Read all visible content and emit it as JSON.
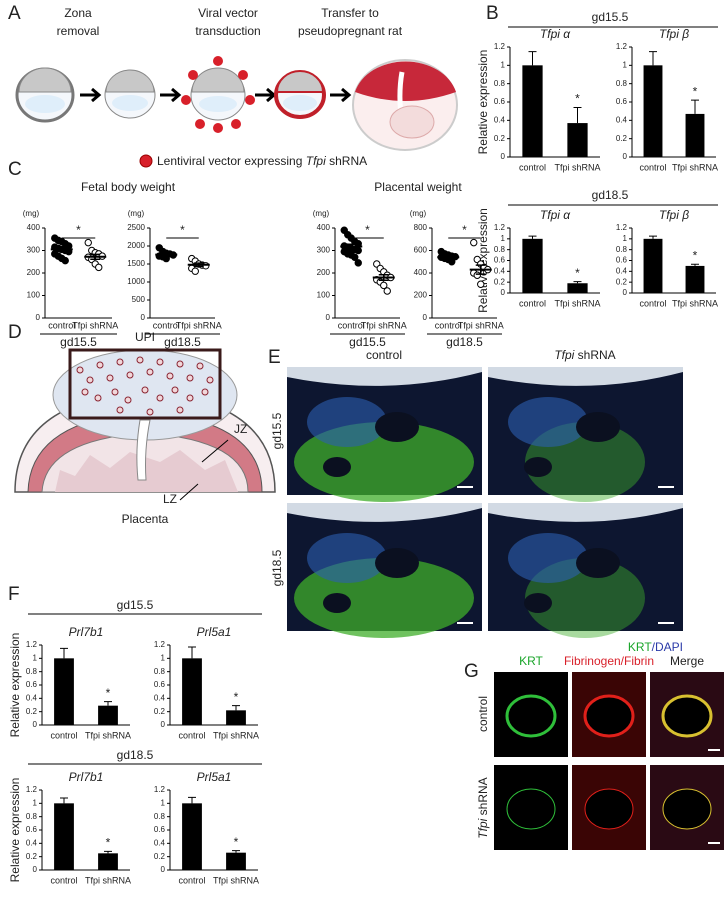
{
  "panel_letters": [
    "A",
    "B",
    "C",
    "D",
    "E",
    "F",
    "G"
  ],
  "panel_a": {
    "steps": [
      [
        "Zona",
        "removal"
      ],
      [
        "Viral vector",
        "transduction"
      ],
      [
        "Transfer to",
        "pseudopregnant rat"
      ]
    ],
    "legend": [
      "Lentiviral vector expressing",
      "Tfpi",
      "shRNA"
    ]
  },
  "panel_b": {
    "groups": [
      "gd15.5",
      "gd18.5"
    ]
  },
  "panel_c": {
    "titles": [
      "Fetal body weight",
      "Placental weight"
    ]
  },
  "panel_d": {
    "labels": [
      "UPI",
      "JZ",
      "LZ",
      "Placenta"
    ]
  },
  "panel_e": {
    "columns": [
      [
        "control"
      ],
      [
        "Tfpi",
        "shRNA"
      ]
    ],
    "rows": [
      "gd15.5",
      "gd18.5"
    ],
    "stain": [
      "KRT",
      "/DAPI"
    ]
  },
  "panel_f": {
    "groups": [
      "gd15.5",
      "gd18.5"
    ]
  },
  "panel_g": {
    "columns": [
      "KRT",
      "Fibrinogen/Fibrin",
      "Merge"
    ],
    "rows": [
      [
        "control"
      ],
      [
        "Tfpi",
        "shRNA"
      ]
    ]
  },
  "chart_data": [
    {
      "type": "bar",
      "subtitle": "Tfpi α",
      "ylabel": "Relative expression",
      "categories": [
        "control",
        "Tfpi shRNA"
      ],
      "values": [
        1.0,
        0.37
      ],
      "errors": [
        0.15,
        0.17
      ],
      "color": "#000000",
      "ylim": [
        0,
        1.2
      ],
      "yticks": [
        0,
        0.2,
        0.4,
        0.6,
        0.8,
        1,
        1.2
      ],
      "significance": "*"
    },
    {
      "type": "bar",
      "subtitle": "Tfpi β",
      "categories": [
        "control",
        "Tfpi shRNA"
      ],
      "values": [
        1.0,
        0.47
      ],
      "errors": [
        0.15,
        0.15
      ],
      "color": "#000000",
      "ylim": [
        0,
        1.2
      ],
      "yticks": [
        0,
        0.2,
        0.4,
        0.6,
        0.8,
        1,
        1.2
      ],
      "significance": "*"
    },
    {
      "type": "bar",
      "subtitle": "Tfpi α",
      "ylabel": "Relative expression",
      "categories": [
        "control",
        "Tfpi shRNA"
      ],
      "values": [
        1.0,
        0.18
      ],
      "errors": [
        0.05,
        0.03
      ],
      "color": "#000000",
      "ylim": [
        0,
        1.2
      ],
      "yticks": [
        0,
        0.2,
        0.4,
        0.6,
        0.8,
        1,
        1.2
      ],
      "significance": "*"
    },
    {
      "type": "bar",
      "subtitle": "Tfpi β",
      "categories": [
        "control",
        "Tfpi shRNA"
      ],
      "values": [
        1.0,
        0.5
      ],
      "errors": [
        0.05,
        0.03
      ],
      "color": "#000000",
      "ylim": [
        0,
        1.2
      ],
      "yticks": [
        0,
        0.2,
        0.4,
        0.6,
        0.8,
        1,
        1.2
      ],
      "significance": "*"
    },
    {
      "type": "scatter",
      "unit": "(mg)",
      "xlabel": "gd15.5",
      "categories": [
        "control",
        "Tfpi shRNA"
      ],
      "ylim": [
        0,
        400
      ],
      "yticks": [
        0,
        100,
        200,
        300,
        400
      ],
      "significance": "*",
      "groups": [
        {
          "values": [
            355,
            345,
            340,
            330,
            320,
            315,
            310,
            305,
            300,
            295,
            285,
            275,
            265,
            255
          ],
          "mean": 305,
          "sem": 9,
          "fill": "#000000"
        },
        {
          "values": [
            335,
            300,
            290,
            285,
            275,
            270,
            260,
            240,
            225
          ],
          "mean": 272,
          "sem": 11,
          "fill": "#ffffff"
        }
      ]
    },
    {
      "type": "scatter",
      "unit": "(mg)",
      "xlabel": "gd18.5",
      "categories": [
        "control",
        "Tfpi shRNA"
      ],
      "ylim": [
        0,
        2500
      ],
      "yticks": [
        0,
        500,
        1000,
        1500,
        2000,
        2500
      ],
      "significance": "*",
      "groups": [
        {
          "values": [
            1950,
            1850,
            1800,
            1780,
            1750,
            1720,
            1700,
            1650
          ],
          "mean": 1760,
          "sem": 40,
          "fill": "#000000"
        },
        {
          "values": [
            1650,
            1580,
            1500,
            1470,
            1450,
            1380,
            1300
          ],
          "mean": 1480,
          "sem": 45,
          "fill": "#ffffff"
        }
      ]
    },
    {
      "type": "scatter",
      "unit": "(mg)",
      "xlabel": "gd15.5",
      "categories": [
        "control",
        "Tfpi shRNA"
      ],
      "ylim": [
        0,
        400
      ],
      "yticks": [
        0,
        100,
        200,
        300,
        400
      ],
      "significance": "*",
      "groups": [
        {
          "values": [
            390,
            370,
            355,
            340,
            330,
            320,
            315,
            310,
            305,
            300,
            295,
            285,
            280,
            270,
            245
          ],
          "mean": 318,
          "sem": 10,
          "fill": "#000000"
        },
        {
          "values": [
            240,
            220,
            205,
            190,
            180,
            170,
            160,
            145,
            120
          ],
          "mean": 180,
          "sem": 12,
          "fill": "#ffffff"
        }
      ]
    },
    {
      "type": "scatter",
      "unit": "(mg)",
      "xlabel": "gd18.5",
      "categories": [
        "control",
        "Tfpi shRNA"
      ],
      "ylim": [
        0,
        800
      ],
      "yticks": [
        0,
        200,
        400,
        600,
        800
      ],
      "significance": "*",
      "groups": [
        {
          "values": [
            590,
            570,
            560,
            550,
            545,
            540,
            530,
            520,
            500
          ],
          "mean": 540,
          "sem": 10,
          "fill": "#000000"
        },
        {
          "values": [
            670,
            520,
            480,
            450,
            430,
            400,
            380,
            300
          ],
          "mean": 430,
          "sem": 40,
          "fill": "#ffffff"
        }
      ]
    },
    {
      "type": "bar",
      "subtitle": "Prl7b1",
      "ylabel": "Relative expression",
      "categories": [
        "control",
        "Tfpi shRNA"
      ],
      "values": [
        1.0,
        0.29
      ],
      "errors": [
        0.15,
        0.06
      ],
      "color": "#000000",
      "ylim": [
        0,
        1.2
      ],
      "yticks": [
        0,
        0.2,
        0.4,
        0.6,
        0.8,
        1,
        1.2
      ],
      "significance": "*"
    },
    {
      "type": "bar",
      "subtitle": "Prl5a1",
      "categories": [
        "control",
        "Tfpi shRNA"
      ],
      "values": [
        1.0,
        0.22
      ],
      "errors": [
        0.17,
        0.07
      ],
      "color": "#000000",
      "ylim": [
        0,
        1.2
      ],
      "yticks": [
        0,
        0.2,
        0.4,
        0.6,
        0.8,
        1,
        1.2
      ],
      "significance": "*"
    },
    {
      "type": "bar",
      "subtitle": "Prl7b1",
      "ylabel": "Relative expression",
      "categories": [
        "control",
        "Tfpi shRNA"
      ],
      "values": [
        1.0,
        0.25
      ],
      "errors": [
        0.08,
        0.03
      ],
      "color": "#000000",
      "ylim": [
        0,
        1.2
      ],
      "yticks": [
        0,
        0.2,
        0.4,
        0.6,
        0.8,
        1,
        1.2
      ],
      "significance": "*"
    },
    {
      "type": "bar",
      "subtitle": "Prl5a1",
      "categories": [
        "control",
        "Tfpi shRNA"
      ],
      "values": [
        1.0,
        0.26
      ],
      "errors": [
        0.09,
        0.03
      ],
      "color": "#000000",
      "ylim": [
        0,
        1.2
      ],
      "yticks": [
        0,
        0.2,
        0.4,
        0.6,
        0.8,
        1,
        1.2
      ],
      "significance": "*"
    }
  ]
}
